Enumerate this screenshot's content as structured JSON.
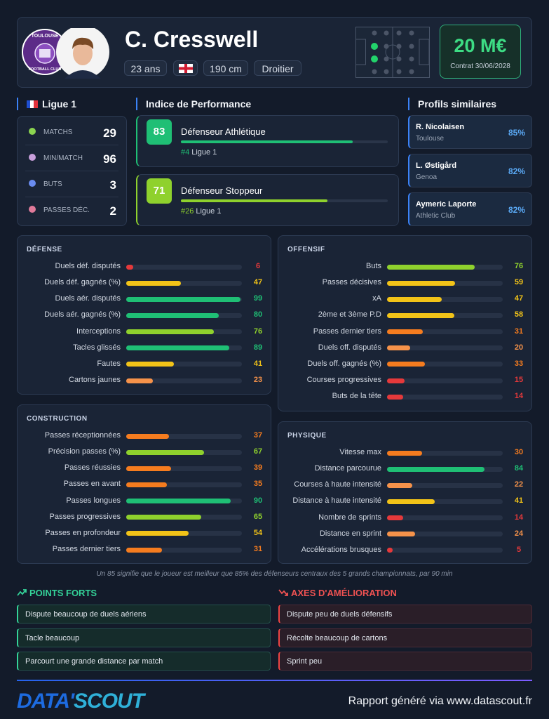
{
  "header": {
    "name": "C. Cresswell",
    "age": "23 ans",
    "height": "190 cm",
    "foot": "Droitier",
    "club_badge": [
      "TOULOUSE",
      "FOOTBALL CLUB"
    ],
    "value": "20 M€",
    "contract": "Contrat 30/06/2028"
  },
  "league": {
    "title": "Ligue 1",
    "stats": [
      {
        "label": "MATCHS",
        "value": 29
      },
      {
        "label": "MIN/MATCH",
        "value": 96
      },
      {
        "label": "BUTS",
        "value": 3
      },
      {
        "label": "PASSES DÉC.",
        "value": 2
      }
    ]
  },
  "performance": {
    "title": "Indice de Performance",
    "items": [
      {
        "score": 83,
        "role": "Défenseur Athlétique",
        "rank": "#4",
        "league": "Ligue 1"
      },
      {
        "score": 71,
        "role": "Défenseur Stoppeur",
        "rank": "#26",
        "league": "Ligue 1"
      }
    ]
  },
  "similar": {
    "title": "Profils similaires",
    "items": [
      {
        "name": "R. Nicolaisen",
        "club": "Toulouse",
        "match": "85%"
      },
      {
        "name": "L. Østigård",
        "club": "Genoa",
        "match": "82%"
      },
      {
        "name": "Aymeric Laporte",
        "club": "Athletic Club",
        "match": "82%"
      }
    ]
  },
  "panels": [
    {
      "title": "DÉFENSE",
      "stats": [
        {
          "label": "Duels déf. disputés",
          "value": 6
        },
        {
          "label": "Duels déf. gagnés (%)",
          "value": 47
        },
        {
          "label": "Duels aér. disputés",
          "value": 99
        },
        {
          "label": "Duels aér. gagnés (%)",
          "value": 80
        },
        {
          "label": "Interceptions",
          "value": 76
        },
        {
          "label": "Tacles glissés",
          "value": 89
        },
        {
          "label": "Fautes",
          "value": 41
        },
        {
          "label": "Cartons jaunes",
          "value": 23
        }
      ]
    },
    {
      "title": "OFFENSIF",
      "stats": [
        {
          "label": "Buts",
          "value": 76
        },
        {
          "label": "Passes décisives",
          "value": 59
        },
        {
          "label": "xA",
          "value": 47
        },
        {
          "label": "2ème et 3ème P.D",
          "value": 58
        },
        {
          "label": "Passes dernier tiers",
          "value": 31
        },
        {
          "label": "Duels off. disputés",
          "value": 20
        },
        {
          "label": "Duels off. gagnés (%)",
          "value": 33
        },
        {
          "label": "Courses progressives",
          "value": 15
        },
        {
          "label": "Buts de la tête",
          "value": 14
        }
      ]
    },
    {
      "title": "CONSTRUCTION",
      "stats": [
        {
          "label": "Passes réceptionnées",
          "value": 37
        },
        {
          "label": "Précision passes (%)",
          "value": 67
        },
        {
          "label": "Passes réussies",
          "value": 39
        },
        {
          "label": "Passes en avant",
          "value": 35
        },
        {
          "label": "Passes longues",
          "value": 90
        },
        {
          "label": "Passes progressives",
          "value": 65
        },
        {
          "label": "Passes en profondeur",
          "value": 54
        },
        {
          "label": "Passes dernier tiers",
          "value": 31
        }
      ]
    },
    {
      "title": "PHYSIQUE",
      "stats": [
        {
          "label": "Vitesse max",
          "value": 30
        },
        {
          "label": "Distance parcourue",
          "value": 84
        },
        {
          "label": "Courses à haute intensité",
          "value": 22
        },
        {
          "label": "Distance à haute intensité",
          "value": 41
        },
        {
          "label": "Nombre de sprints",
          "value": 14
        },
        {
          "label": "Distance en sprint",
          "value": 24
        },
        {
          "label": "Accélérations brusques",
          "value": 5
        }
      ]
    }
  ],
  "note": "Un 85 signifie que le joueur est meilleur que 85% des défenseurs centraux des 5 grands championnats, par 90 min",
  "strengths": {
    "title": "POINTS FORTS",
    "items": [
      "Dispute beaucoup de duels aériens",
      "Tacle beaucoup",
      "Parcourt une grande distance par match"
    ]
  },
  "improvements": {
    "title": "AXES D'AMÉLIORATION",
    "items": [
      "Dispute peu de duels défensifs",
      "Récolte beaucoup de cartons",
      "Sprint peu"
    ]
  },
  "brand": {
    "part1": "DATA'",
    "part2": "SCOUT"
  },
  "footer": "Rapport généré via www.datascout.fr"
}
